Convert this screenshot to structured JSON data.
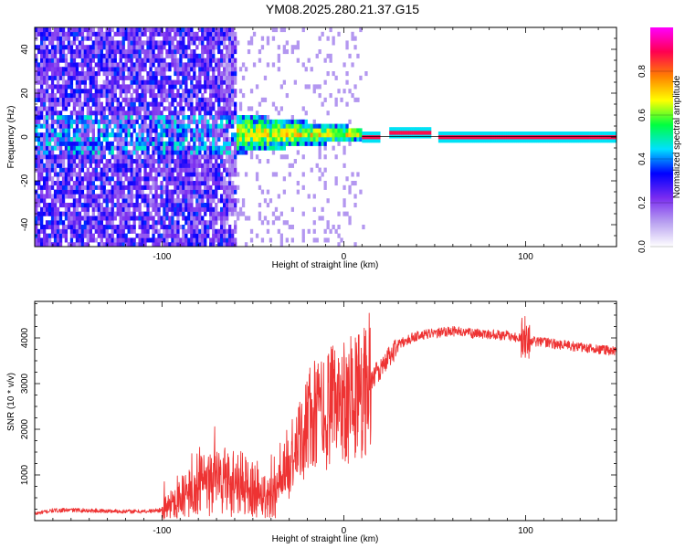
{
  "title": "YM08.2025.280.21.37.G15",
  "colors": {
    "snr_line": "#ee3333",
    "colormap": [
      "#ffffff",
      "#b8a0f0",
      "#7a2cf0",
      "#0000ff",
      "#00e0ff",
      "#00ff40",
      "#ffff00",
      "#ff8000",
      "#ff0050",
      "#ff00ff"
    ]
  },
  "chart_data": [
    {
      "type": "heatmap",
      "name": "spectrogram",
      "xlabel": "Height of straight line (km)",
      "ylabel": "Frequency (Hz)",
      "xlim": [
        -170,
        150
      ],
      "ylim": [
        -50,
        50
      ],
      "xticks": [
        -100,
        0,
        100
      ],
      "yticks": [
        -40,
        -20,
        0,
        20,
        40
      ],
      "colorbar": {
        "label": "Normalized spectral amplitude",
        "range": [
          0,
          1
        ],
        "ticks": [
          0.0,
          0.2,
          0.4,
          0.6,
          0.8
        ]
      },
      "features": {
        "noise_region_x": [
          -170,
          -60
        ],
        "turbulent_region_x": [
          -60,
          10
        ],
        "carrier_segments": [
          {
            "x": [
              10,
              20
            ],
            "freq": 0
          },
          {
            "x": [
              25,
              48
            ],
            "freq": 2
          },
          {
            "x": [
              52,
              150
            ],
            "freq": 0
          }
        ]
      }
    },
    {
      "type": "line",
      "name": "snr",
      "xlabel": "Height of straight line (km)",
      "ylabel": "SNR (10 * v/v)",
      "xlim": [
        -170,
        150
      ],
      "ylim": [
        0,
        4800
      ],
      "xticks": [
        -100,
        0,
        100
      ],
      "yticks": [
        1000,
        2000,
        3000,
        4000
      ],
      "x": [
        -170,
        -160,
        -150,
        -140,
        -130,
        -120,
        -110,
        -100,
        -90,
        -80,
        -70,
        -60,
        -50,
        -40,
        -35,
        -30,
        -25,
        -20,
        -15,
        -10,
        -5,
        0,
        5,
        10,
        15,
        20,
        25,
        30,
        35,
        40,
        50,
        60,
        70,
        80,
        90,
        100,
        110,
        120,
        130,
        140,
        150
      ],
      "y": [
        150,
        220,
        230,
        220,
        210,
        200,
        200,
        230,
        500,
        700,
        900,
        850,
        700,
        500,
        700,
        1100,
        1600,
        2200,
        2300,
        2400,
        2500,
        2700,
        2700,
        2800,
        3100,
        3300,
        3600,
        3850,
        3950,
        4050,
        4100,
        4150,
        4100,
        4080,
        4050,
        3950,
        3900,
        3850,
        3800,
        3750,
        3700
      ]
    }
  ]
}
